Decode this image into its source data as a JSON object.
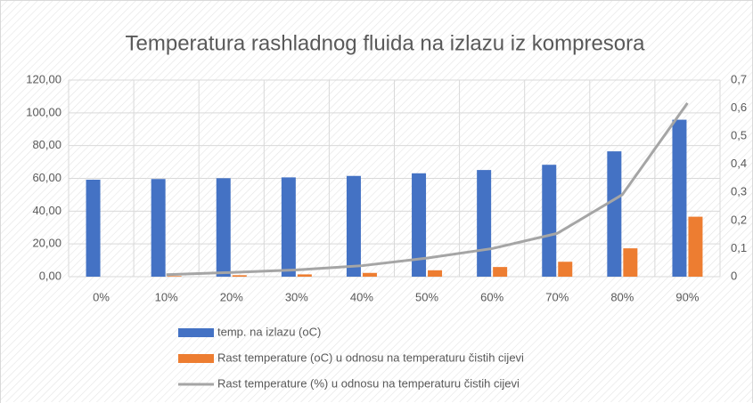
{
  "chart_data": {
    "type": "bar-line",
    "title": "Temperatura rashladnog fluida na izlazu iz kompresora",
    "categories": [
      "0%",
      "10%",
      "20%",
      "30%",
      "40%",
      "50%",
      "60%",
      "70%",
      "80%",
      "90%"
    ],
    "series": [
      {
        "name": "temp. na izlazu (oC)",
        "type": "bar",
        "color": "#4472c4",
        "values": [
          59.2,
          59.6,
          60.1,
          60.6,
          61.5,
          63.1,
          65.1,
          68.3,
          76.5,
          95.8
        ]
      },
      {
        "name": "Rast temperature (oC) u odnosu na temperaturu čistih cijevi",
        "type": "bar",
        "color": "#ed7d31",
        "values": [
          0,
          0.4,
          0.9,
          1.4,
          2.3,
          3.9,
          5.9,
          9.1,
          17.3,
          36.6
        ]
      },
      {
        "name": "Rast temperature (%) u odnosu na temperaturu čistih cijevi",
        "type": "line",
        "axis": "y2",
        "color": "#a5a5a5",
        "values": [
          null,
          0.007,
          0.015,
          0.024,
          0.039,
          0.066,
          0.1,
          0.154,
          0.292,
          0.618
        ]
      }
    ],
    "ylim": [
      0,
      120
    ],
    "yticks": [
      {
        "value": 0,
        "label": "0,00"
      },
      {
        "value": 20,
        "label": "20,00"
      },
      {
        "value": 40,
        "label": "40,00"
      },
      {
        "value": 60,
        "label": "60,00"
      },
      {
        "value": 80,
        "label": "80,00"
      },
      {
        "value": 100,
        "label": "100,00"
      },
      {
        "value": 120,
        "label": "120,00"
      }
    ],
    "y2lim": [
      0,
      0.7
    ],
    "y2ticks": [
      0,
      {
        "value": 0.1,
        "label": "0,1"
      },
      {
        "value": 0.2,
        "label": "0,2"
      },
      {
        "value": 0.3,
        "label": "0,3"
      },
      {
        "value": 0.4,
        "label": "0,4"
      },
      {
        "value": 0.5,
        "label": "0,5"
      },
      {
        "value": 0.6,
        "label": "0,6"
      },
      {
        "value": 0.7,
        "label": "0,7"
      }
    ],
    "grid": true,
    "legend": "bottom"
  }
}
